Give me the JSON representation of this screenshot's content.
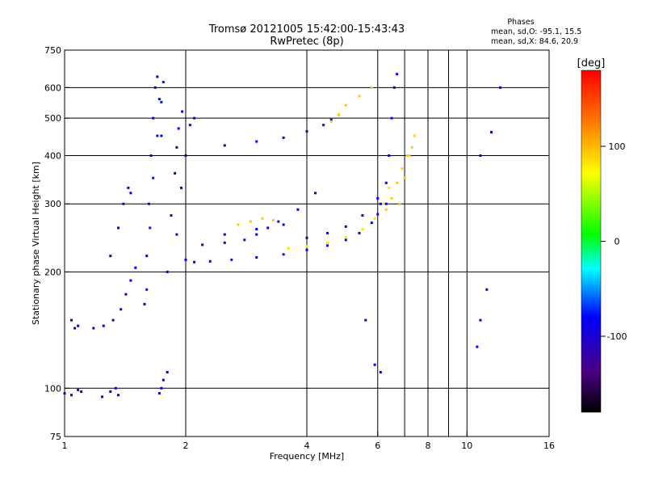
{
  "chart_data": {
    "type": "scatter",
    "title_line1": "Tromsø 20121005 15:42:00-15:43:43",
    "title_line2": "RwPretec (8p)",
    "xlabel": "Frequency [MHz]",
    "ylabel": "Stationary phase Virtual Height [km]",
    "x_scale": "log",
    "y_scale": "log",
    "xlim": [
      1,
      16
    ],
    "ylim": [
      75,
      750
    ],
    "x_ticks": [
      1,
      2,
      4,
      6,
      8,
      10,
      16
    ],
    "x_tick_labels": [
      "1",
      "2",
      "4",
      "6",
      "8",
      "10",
      "16"
    ],
    "x_gridlines": [
      2,
      4,
      6,
      7,
      8,
      9,
      10
    ],
    "y_ticks": [
      75,
      100,
      200,
      300,
      400,
      500,
      600,
      750
    ],
    "y_tick_labels": [
      "75",
      "100",
      "200",
      "300",
      "400",
      "500",
      "600",
      "750"
    ],
    "grid": true,
    "stats": {
      "heading": "Phases",
      "line_o": "mean, sd,O: -95.1, 15.5",
      "line_x": "mean, sd,X:  84.6, 20.9"
    },
    "colorbar": {
      "label": "[deg]",
      "range": [
        -180,
        180
      ],
      "ticks": [
        100,
        0,
        -100
      ],
      "tick_labels": [
        "100",
        "0",
        "-100"
      ]
    },
    "series": [
      {
        "x": [
          1.0,
          1.04,
          1.08,
          1.1
        ],
        "y": [
          97,
          96,
          99,
          98
        ],
        "phase": -100
      },
      {
        "x": [
          1.04,
          1.06,
          1.08
        ],
        "y": [
          150,
          143,
          145
        ],
        "phase": -100
      },
      {
        "x": [
          1.18,
          1.25,
          1.32,
          1.38,
          1.42,
          1.46,
          1.5
        ],
        "y": [
          143,
          145,
          150,
          160,
          175,
          190,
          205
        ],
        "phase": -105
      },
      {
        "x": [
          1.3,
          1.36,
          1.4,
          1.44,
          1.46
        ],
        "y": [
          220,
          260,
          300,
          330,
          320
        ],
        "phase": -105
      },
      {
        "x": [
          1.24,
          1.3,
          1.34,
          1.36
        ],
        "y": [
          95,
          98,
          100,
          96
        ],
        "phase": -100
      },
      {
        "x": [
          1.58,
          1.6,
          1.62,
          1.64,
          1.66,
          1.68,
          1.7,
          1.72,
          1.74
        ],
        "y": [
          165,
          220,
          300,
          400,
          500,
          600,
          640,
          560,
          450
        ],
        "phase": -100
      },
      {
        "x": [
          1.6,
          1.63,
          1.66,
          1.7,
          1.74,
          1.76
        ],
        "y": [
          180,
          260,
          350,
          450,
          550,
          620
        ],
        "phase": -95
      },
      {
        "x": [
          1.8,
          1.84,
          1.88,
          1.9,
          1.92,
          1.96
        ],
        "y": [
          200,
          280,
          360,
          420,
          470,
          520
        ],
        "phase": -100
      },
      {
        "x": [
          1.9,
          1.95,
          2.0,
          2.05,
          2.1
        ],
        "y": [
          250,
          330,
          400,
          480,
          500
        ],
        "phase": -105
      },
      {
        "x": [
          1.72,
          1.74,
          1.76,
          1.8
        ],
        "y": [
          97,
          100,
          105,
          110
        ],
        "phase": -100
      },
      {
        "x": [
          2.0,
          2.1,
          2.3,
          2.6,
          3.0,
          3.5,
          4.0,
          4.5,
          5.0,
          5.4,
          5.8,
          6.0,
          6.1
        ],
        "y": [
          215,
          212,
          213,
          215,
          218,
          222,
          228,
          234,
          242,
          252,
          268,
          282,
          300
        ],
        "phase": -110
      },
      {
        "x": [
          3.6,
          4.0,
          4.5,
          5.0,
          5.5,
          5.9,
          6.2,
          6.4
        ],
        "y": [
          230,
          233,
          238,
          246,
          258,
          275,
          300,
          330
        ],
        "phase": 90
      },
      {
        "x": [
          4.0,
          4.5,
          5.0,
          5.5,
          6.0,
          6.3
        ],
        "y": [
          245,
          252,
          262,
          280,
          310,
          340
        ],
        "phase": -100
      },
      {
        "x": [
          6.3,
          6.5,
          6.7,
          6.9,
          7.1,
          7.3
        ],
        "y": [
          290,
          310,
          340,
          370,
          400,
          420
        ],
        "phase": 100
      },
      {
        "x": [
          2.2,
          2.5,
          2.8,
          3.0,
          3.2,
          3.5
        ],
        "y": [
          235,
          238,
          242,
          250,
          260,
          265
        ],
        "phase": -110
      },
      {
        "x": [
          2.5,
          3.0,
          3.4,
          3.8,
          4.2
        ],
        "y": [
          250,
          258,
          270,
          290,
          320
        ],
        "phase": -100
      },
      {
        "x": [
          2.7,
          2.9,
          3.1,
          3.3
        ],
        "y": [
          265,
          270,
          275,
          272
        ],
        "phase": 100
      },
      {
        "x": [
          2.5,
          3.0,
          3.5,
          4.0,
          4.4,
          4.6,
          4.8
        ],
        "y": [
          425,
          435,
          445,
          462,
          480,
          495,
          510
        ],
        "phase": -110
      },
      {
        "x": [
          4.6,
          4.8,
          5.0,
          5.4,
          5.8
        ],
        "y": [
          490,
          510,
          540,
          570,
          600
        ],
        "phase": 100
      },
      {
        "x": [
          6.3,
          6.4,
          6.5,
          6.6,
          6.7
        ],
        "y": [
          300,
          400,
          500,
          600,
          650
        ],
        "phase": -100
      },
      {
        "x": [
          6.8,
          7.0,
          7.2,
          7.4
        ],
        "y": [
          300,
          350,
          400,
          450
        ],
        "phase": 100
      },
      {
        "x": [
          10.8,
          11.5,
          12.1
        ],
        "y": [
          400,
          460,
          600
        ],
        "phase": -100
      },
      {
        "x": [
          10.6,
          10.8,
          11.2
        ],
        "y": [
          128,
          150,
          180
        ],
        "phase": -100
      },
      {
        "x": [
          5.6,
          5.9,
          6.1
        ],
        "y": [
          150,
          115,
          110
        ],
        "phase": -100
      }
    ]
  }
}
